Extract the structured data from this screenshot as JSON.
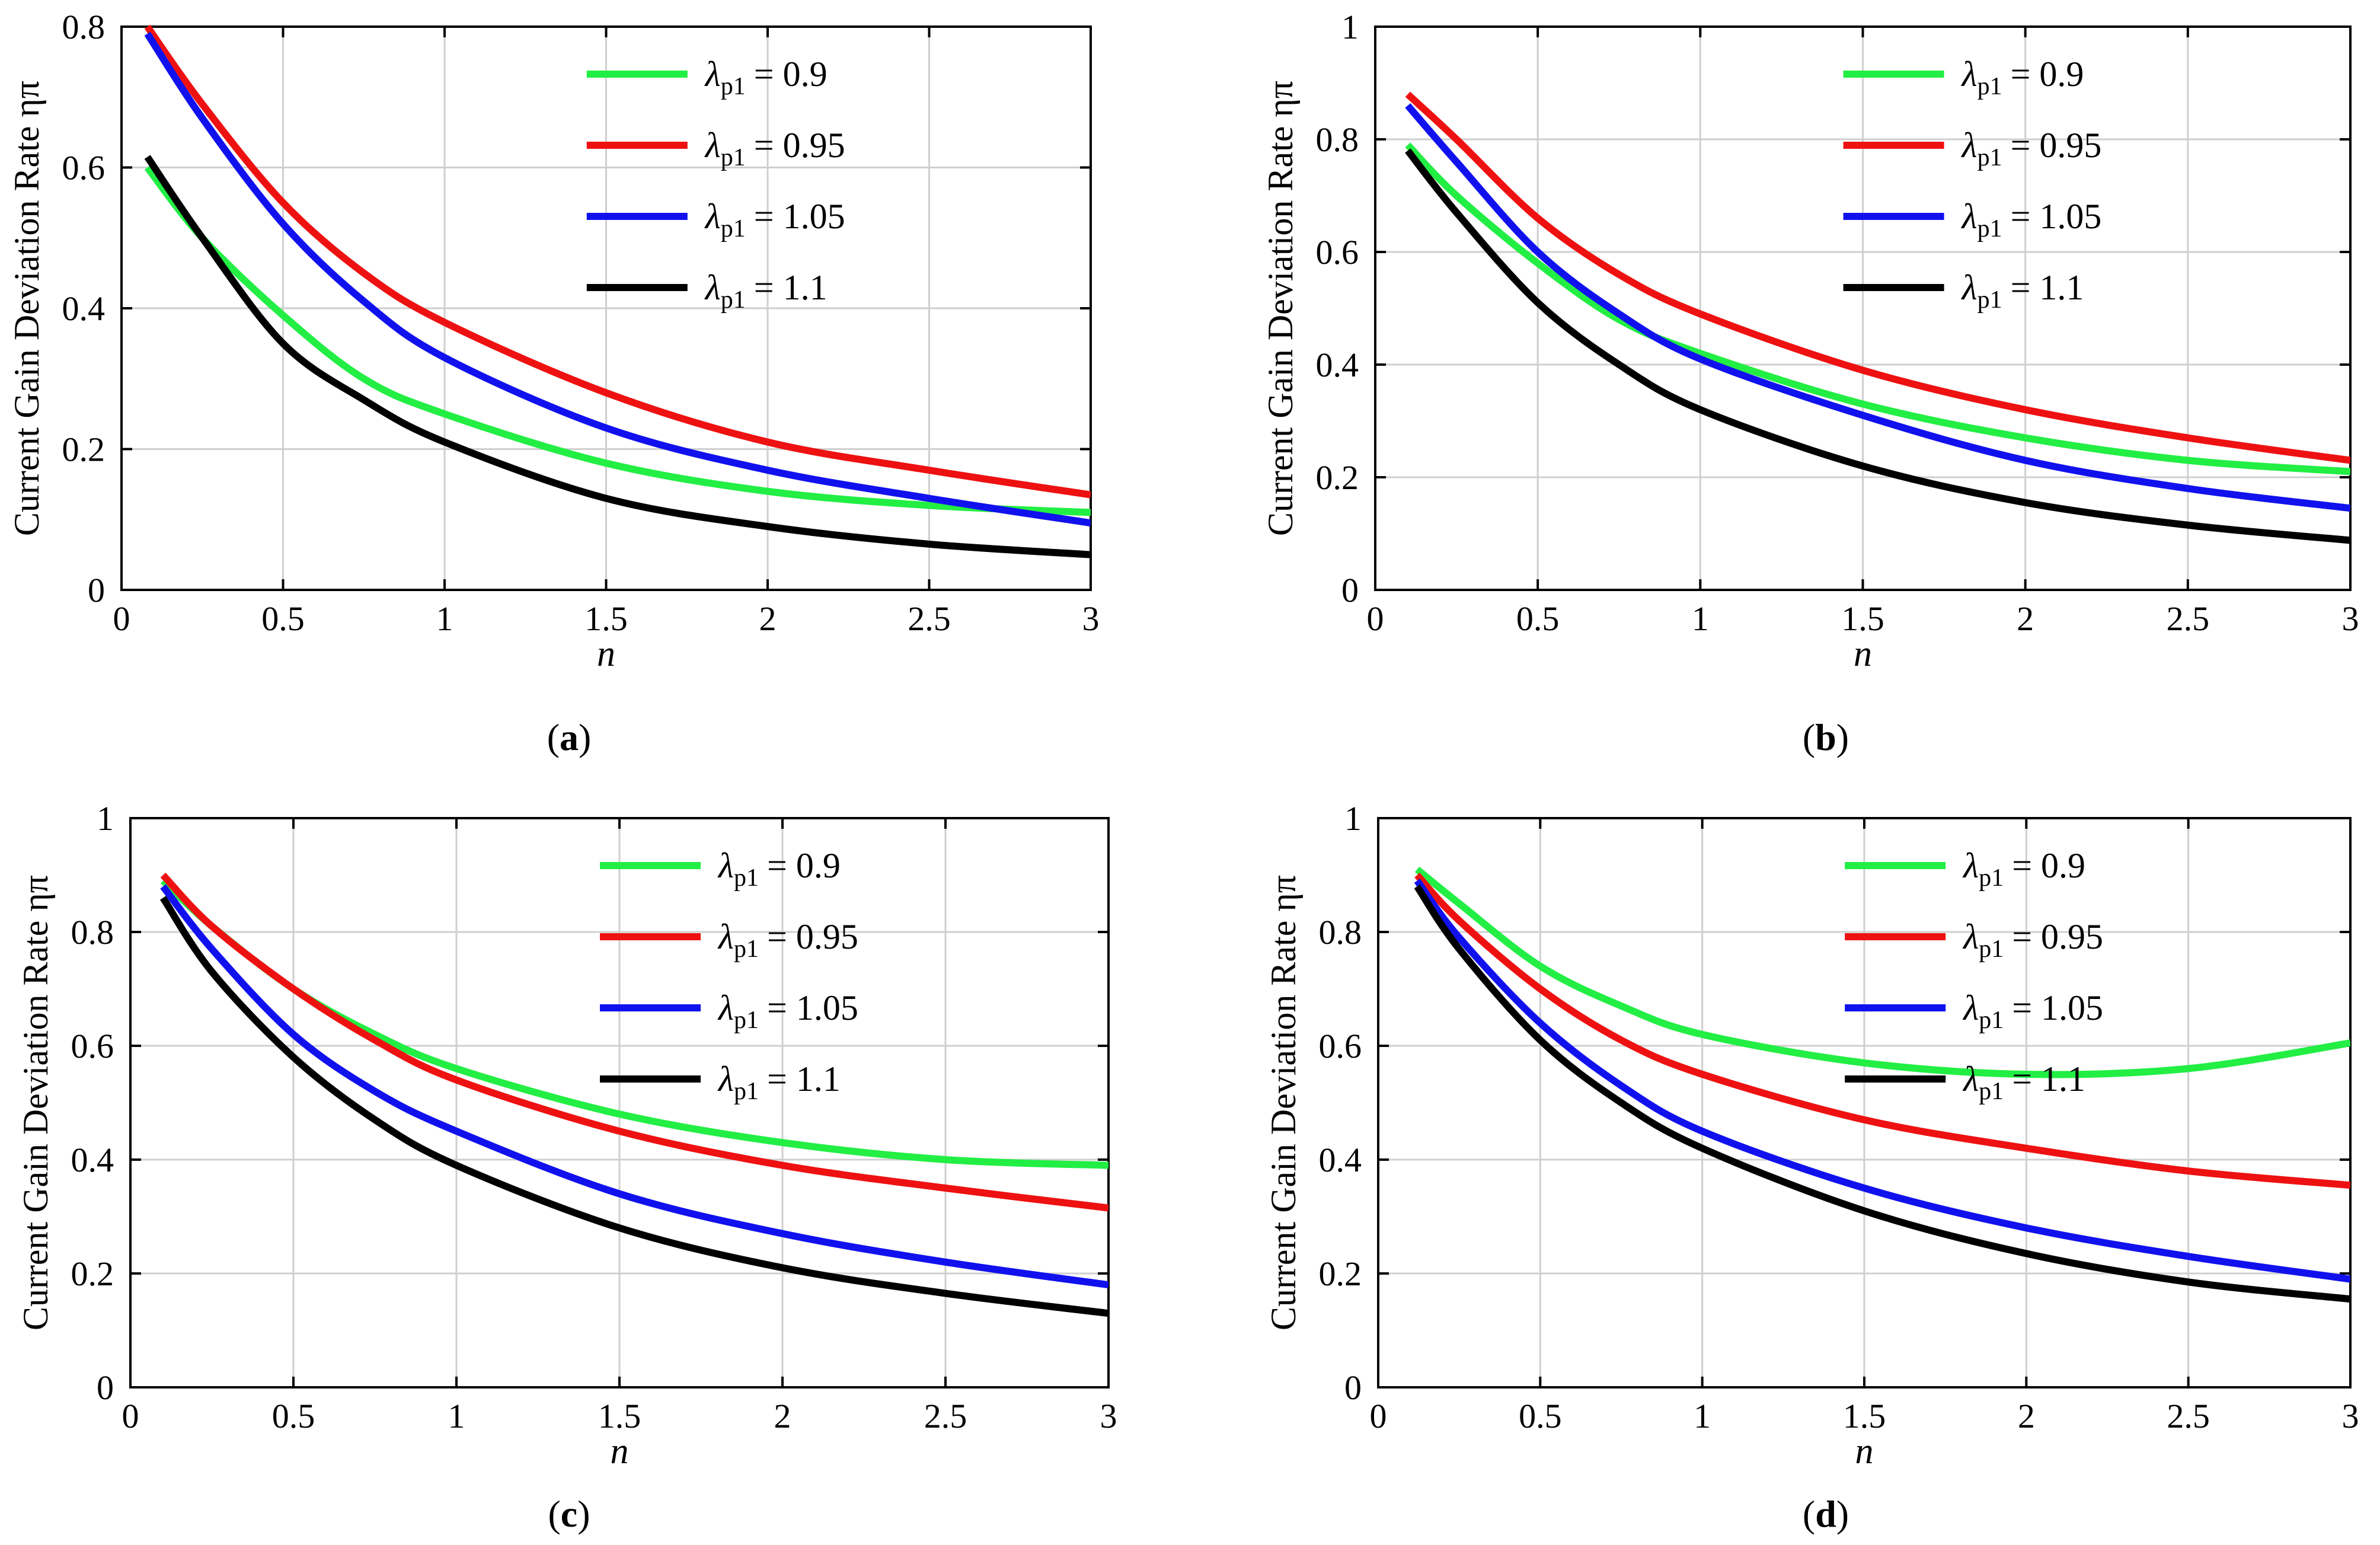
{
  "colors": {
    "green": "#22ee44",
    "red": "#ee1111",
    "blue": "#1111ee",
    "black": "#000000",
    "grid": "#cfcfcf"
  },
  "chart_data": [
    {
      "panel": "a",
      "caption": {
        "open": "(",
        "letter": "a",
        "close": ")"
      },
      "type": "line",
      "xlabel": "n",
      "ylabel": "Current Gain Deviation Rate ηπ",
      "xlim": [
        0,
        3
      ],
      "ylim": [
        0,
        0.8
      ],
      "xticks": [
        0,
        0.5,
        1,
        1.5,
        2,
        2.5,
        3
      ],
      "yticks": [
        0,
        0.2,
        0.4,
        0.6,
        0.8
      ],
      "xtick_labels": [
        "0",
        "0.5",
        "1",
        "1.5",
        "2",
        "2.5",
        "3"
      ],
      "ytick_labels": [
        "0",
        "0.2",
        "0.4",
        "0.6",
        "0.8"
      ],
      "grid": true,
      "legend_placement": "top-right",
      "x": [
        0.08,
        0.25,
        0.5,
        0.75,
        1.0,
        1.5,
        2.0,
        2.5,
        3.0
      ],
      "series": [
        {
          "name": "λp1 = 0.9",
          "symbol": "λ",
          "subscript": "p1",
          "value_text": "= 0.9",
          "color": "#22ee44",
          "values": [
            0.6,
            0.5,
            0.39,
            0.3,
            0.25,
            0.18,
            0.14,
            0.12,
            0.11
          ]
        },
        {
          "name": "λp1 = 0.95",
          "symbol": "λ",
          "subscript": "p1",
          "value_text": "= 0.95",
          "color": "#ee1111",
          "values": [
            0.8,
            0.69,
            0.55,
            0.45,
            0.38,
            0.28,
            0.21,
            0.17,
            0.135
          ]
        },
        {
          "name": "λp1 = 1.05",
          "symbol": "λ",
          "subscript": "p1",
          "value_text": "= 1.05",
          "color": "#1111ee",
          "values": [
            0.79,
            0.67,
            0.52,
            0.41,
            0.33,
            0.23,
            0.17,
            0.13,
            0.095
          ]
        },
        {
          "name": "λp1 = 1.1",
          "symbol": "λ",
          "subscript": "p1",
          "value_text": "= 1.1",
          "color": "#000000",
          "values": [
            0.615,
            0.5,
            0.35,
            0.27,
            0.21,
            0.13,
            0.09,
            0.065,
            0.05
          ]
        }
      ]
    },
    {
      "panel": "b",
      "caption": {
        "open": "(",
        "letter": "b",
        "close": ")"
      },
      "type": "line",
      "xlabel": "n",
      "ylabel": "Current Gain Deviation Rate ηπ",
      "xlim": [
        0,
        3
      ],
      "ylim": [
        0,
        1
      ],
      "xticks": [
        0,
        0.5,
        1,
        1.5,
        2,
        2.5,
        3
      ],
      "yticks": [
        0,
        0.2,
        0.4,
        0.6,
        0.8,
        1
      ],
      "xtick_labels": [
        "0",
        "0.5",
        "1",
        "1.5",
        "2",
        "2.5",
        "3"
      ],
      "ytick_labels": [
        "0",
        "0.2",
        "0.4",
        "0.6",
        "0.8",
        "1"
      ],
      "grid": true,
      "legend_placement": "top-right",
      "x": [
        0.1,
        0.25,
        0.5,
        0.75,
        1.0,
        1.5,
        2.0,
        2.5,
        3.0
      ],
      "series": [
        {
          "name": "λp1 = 0.9",
          "symbol": "λ",
          "subscript": "p1",
          "value_text": "= 0.9",
          "color": "#22ee44",
          "values": [
            0.79,
            0.7,
            0.58,
            0.48,
            0.42,
            0.33,
            0.27,
            0.23,
            0.21
          ]
        },
        {
          "name": "λp1 = 0.95",
          "symbol": "λ",
          "subscript": "p1",
          "value_text": "= 0.95",
          "color": "#ee1111",
          "values": [
            0.88,
            0.8,
            0.66,
            0.56,
            0.49,
            0.39,
            0.32,
            0.27,
            0.23
          ]
        },
        {
          "name": "λp1 = 1.05",
          "symbol": "λ",
          "subscript": "p1",
          "value_text": "= 1.05",
          "color": "#1111ee",
          "values": [
            0.86,
            0.76,
            0.6,
            0.49,
            0.41,
            0.31,
            0.23,
            0.18,
            0.145
          ]
        },
        {
          "name": "λp1 = 1.1",
          "symbol": "λ",
          "subscript": "p1",
          "value_text": "= 1.1",
          "color": "#000000",
          "values": [
            0.78,
            0.67,
            0.51,
            0.4,
            0.32,
            0.22,
            0.155,
            0.115,
            0.088
          ]
        }
      ]
    },
    {
      "panel": "c",
      "caption": {
        "open": "(",
        "letter": "c",
        "close": ")"
      },
      "type": "line",
      "xlabel": "n",
      "ylabel": "Current Gain Deviation Rate ηπ",
      "xlim": [
        0,
        3
      ],
      "ylim": [
        0,
        1
      ],
      "xticks": [
        0,
        0.5,
        1,
        1.5,
        2,
        2.5,
        3
      ],
      "yticks": [
        0,
        0.2,
        0.4,
        0.6,
        0.8,
        1
      ],
      "xtick_labels": [
        "0",
        "0.5",
        "1",
        "1.5",
        "2",
        "2.5",
        "3"
      ],
      "ytick_labels": [
        "0",
        "0.2",
        "0.4",
        "0.6",
        "0.8",
        "1"
      ],
      "grid": true,
      "legend_placement": "top-right",
      "x": [
        0.1,
        0.25,
        0.5,
        0.75,
        1.0,
        1.5,
        2.0,
        2.5,
        3.0
      ],
      "series": [
        {
          "name": "λp1 = 0.9",
          "symbol": "λ",
          "subscript": "p1",
          "value_text": "= 0.9",
          "color": "#22ee44",
          "values": [
            0.89,
            0.81,
            0.7,
            0.62,
            0.56,
            0.48,
            0.43,
            0.4,
            0.39
          ]
        },
        {
          "name": "λp1 = 0.95",
          "symbol": "λ",
          "subscript": "p1",
          "value_text": "= 0.95",
          "color": "#ee1111",
          "values": [
            0.9,
            0.81,
            0.7,
            0.61,
            0.54,
            0.45,
            0.39,
            0.35,
            0.315
          ]
        },
        {
          "name": "λp1 = 1.05",
          "symbol": "λ",
          "subscript": "p1",
          "value_text": "= 1.05",
          "color": "#1111ee",
          "values": [
            0.88,
            0.77,
            0.62,
            0.52,
            0.45,
            0.34,
            0.27,
            0.22,
            0.18
          ]
        },
        {
          "name": "λp1 = 1.1",
          "symbol": "λ",
          "subscript": "p1",
          "value_text": "= 1.1",
          "color": "#000000",
          "values": [
            0.86,
            0.73,
            0.58,
            0.47,
            0.39,
            0.28,
            0.21,
            0.165,
            0.13
          ]
        }
      ]
    },
    {
      "panel": "d",
      "caption": {
        "open": "(",
        "letter": "d",
        "close": ")"
      },
      "type": "line",
      "xlabel": "n",
      "ylabel": "Current Gain Deviation Rate ηπ",
      "xlim": [
        0,
        3
      ],
      "ylim": [
        0,
        1
      ],
      "xticks": [
        0,
        0.5,
        1,
        1.5,
        2,
        2.5,
        3
      ],
      "yticks": [
        0,
        0.2,
        0.4,
        0.6,
        0.8,
        1
      ],
      "xtick_labels": [
        "0",
        "0.5",
        "1",
        "1.5",
        "2",
        "2.5",
        "3"
      ],
      "ytick_labels": [
        "0",
        "0.2",
        "0.4",
        "0.6",
        "0.8",
        "1"
      ],
      "grid": true,
      "legend_placement": "top-right",
      "x": [
        0.12,
        0.25,
        0.5,
        0.75,
        1.0,
        1.5,
        2.0,
        2.5,
        3.0
      ],
      "series": [
        {
          "name": "λp1 = 0.9",
          "symbol": "λ",
          "subscript": "p1",
          "value_text": "= 0.9",
          "color": "#22ee44",
          "values": [
            0.91,
            0.85,
            0.74,
            0.67,
            0.62,
            0.57,
            0.55,
            0.56,
            0.605
          ]
        },
        {
          "name": "λp1 = 0.95",
          "symbol": "λ",
          "subscript": "p1",
          "value_text": "= 0.95",
          "color": "#ee1111",
          "values": [
            0.9,
            0.82,
            0.7,
            0.61,
            0.55,
            0.47,
            0.42,
            0.38,
            0.355
          ]
        },
        {
          "name": "λp1 = 1.05",
          "symbol": "λ",
          "subscript": "p1",
          "value_text": "= 1.05",
          "color": "#1111ee",
          "values": [
            0.89,
            0.79,
            0.64,
            0.53,
            0.45,
            0.35,
            0.28,
            0.23,
            0.19
          ]
        },
        {
          "name": "λp1 = 1.1",
          "symbol": "λ",
          "subscript": "p1",
          "value_text": "= 1.1",
          "color": "#000000",
          "values": [
            0.88,
            0.77,
            0.61,
            0.5,
            0.42,
            0.31,
            0.235,
            0.185,
            0.155
          ]
        }
      ]
    }
  ]
}
